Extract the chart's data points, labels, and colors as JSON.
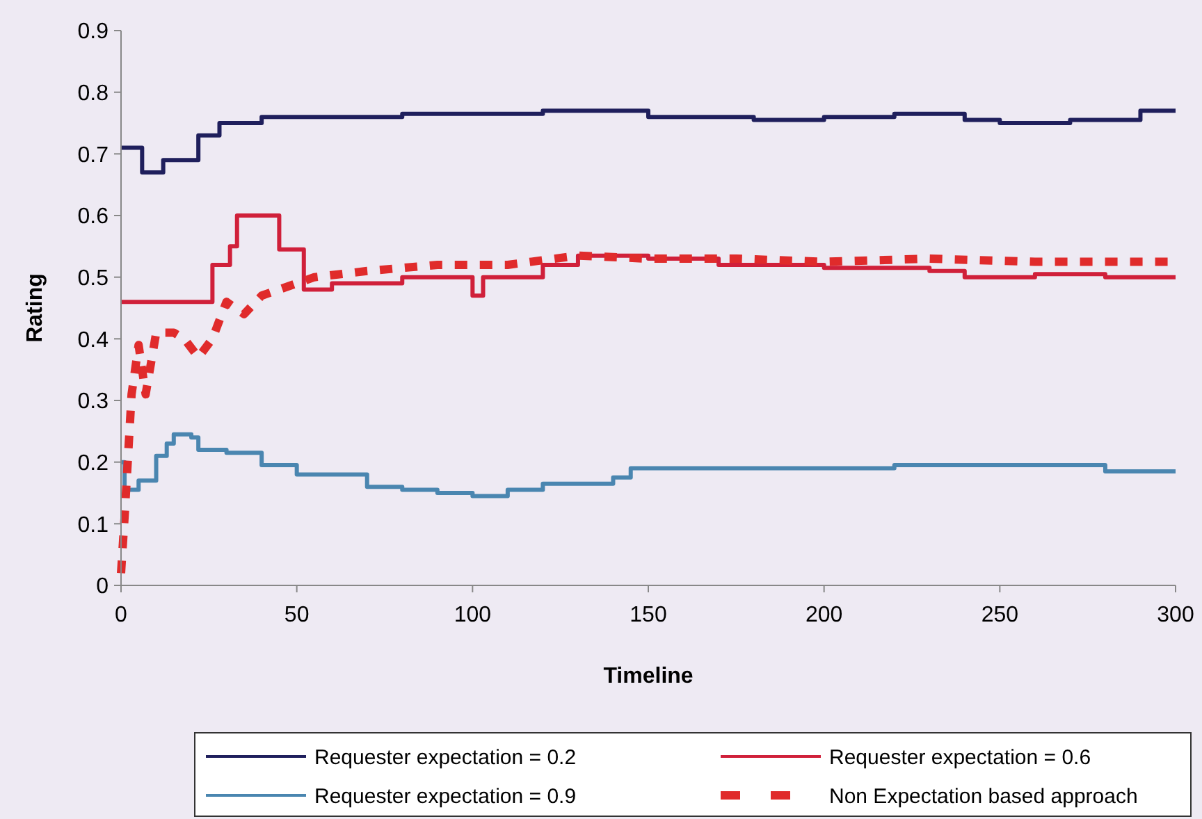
{
  "chart_data": {
    "type": "step",
    "xlabel": "Timeline",
    "ylabel": "Rating",
    "xlim": [
      0,
      300
    ],
    "ylim": [
      0,
      0.9
    ],
    "xticks": [
      0,
      50,
      100,
      150,
      200,
      250,
      300
    ],
    "yticks": [
      0,
      0.1,
      0.2,
      0.3,
      0.4,
      0.5,
      0.6,
      0.7,
      0.8,
      0.9
    ],
    "grid": false,
    "legend": "bottom",
    "marker": "none",
    "series": [
      {
        "name": "Requester expectation = 0.2",
        "color": "#1f1f5c",
        "line_style": "solid",
        "x": [
          0,
          6,
          12,
          22,
          28,
          40,
          60,
          80,
          120,
          150,
          180,
          200,
          220,
          240,
          250,
          270,
          290,
          300
        ],
        "values": [
          0.71,
          0.67,
          0.69,
          0.73,
          0.75,
          0.76,
          0.76,
          0.765,
          0.77,
          0.76,
          0.755,
          0.76,
          0.765,
          0.755,
          0.75,
          0.755,
          0.77,
          0.77
        ]
      },
      {
        "name": "Requester expectation = 0.6",
        "color": "#d0203a",
        "line_style": "solid",
        "x": [
          0,
          26,
          31,
          33,
          45,
          52,
          60,
          80,
          95,
          100,
          103,
          120,
          130,
          150,
          170,
          200,
          230,
          240,
          260,
          280,
          300
        ],
        "values": [
          0.46,
          0.52,
          0.55,
          0.6,
          0.545,
          0.48,
          0.49,
          0.5,
          0.5,
          0.47,
          0.5,
          0.52,
          0.535,
          0.53,
          0.52,
          0.515,
          0.51,
          0.5,
          0.505,
          0.5,
          0.5
        ]
      },
      {
        "name": "Requester expectation = 0.9",
        "color": "#4a86b0",
        "line_style": "solid",
        "x": [
          0,
          1,
          5,
          10,
          13,
          15,
          20,
          22,
          30,
          40,
          50,
          60,
          70,
          80,
          90,
          100,
          110,
          120,
          140,
          145,
          200,
          220,
          260,
          280,
          300
        ],
        "values": [
          0.2,
          0.155,
          0.17,
          0.21,
          0.23,
          0.245,
          0.24,
          0.22,
          0.215,
          0.195,
          0.18,
          0.18,
          0.16,
          0.155,
          0.15,
          0.145,
          0.155,
          0.165,
          0.175,
          0.19,
          0.19,
          0.195,
          0.195,
          0.185,
          0.185
        ]
      },
      {
        "name": "Non Expectation based approach",
        "color": "#e02b2b",
        "type": "line",
        "line_style": "dashed",
        "x": [
          0,
          1,
          2,
          3,
          5,
          7,
          10,
          15,
          18,
          22,
          26,
          30,
          35,
          40,
          45,
          55,
          70,
          90,
          110,
          130,
          150,
          175,
          200,
          230,
          260,
          300
        ],
        "values": [
          0.02,
          0.11,
          0.21,
          0.31,
          0.39,
          0.31,
          0.41,
          0.41,
          0.4,
          0.37,
          0.4,
          0.46,
          0.44,
          0.47,
          0.48,
          0.5,
          0.51,
          0.52,
          0.52,
          0.535,
          0.53,
          0.53,
          0.525,
          0.53,
          0.525,
          0.525
        ]
      }
    ]
  }
}
